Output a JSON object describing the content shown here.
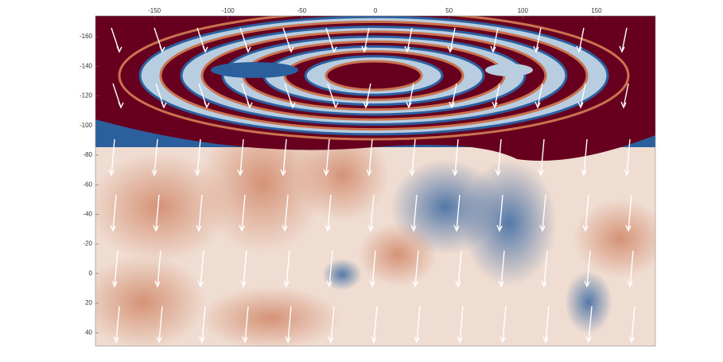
{
  "chart_data": {
    "type": "heatmap",
    "xlim": [
      -190,
      190
    ],
    "xticks": [
      -150,
      -100,
      -50,
      0,
      50,
      100,
      150
    ],
    "ylim": [
      -174,
      49
    ],
    "yticks": [
      -160,
      -140,
      -120,
      -100,
      -80,
      -60,
      -40,
      -20,
      0,
      20,
      40
    ],
    "y_inverted": true,
    "colormap": [
      "#67001f",
      "#c9734f",
      "#f0ddd2",
      "#b8cde0",
      "#2c5f9e",
      "#0a2e5c"
    ],
    "vector_color": "#ffffff"
  }
}
